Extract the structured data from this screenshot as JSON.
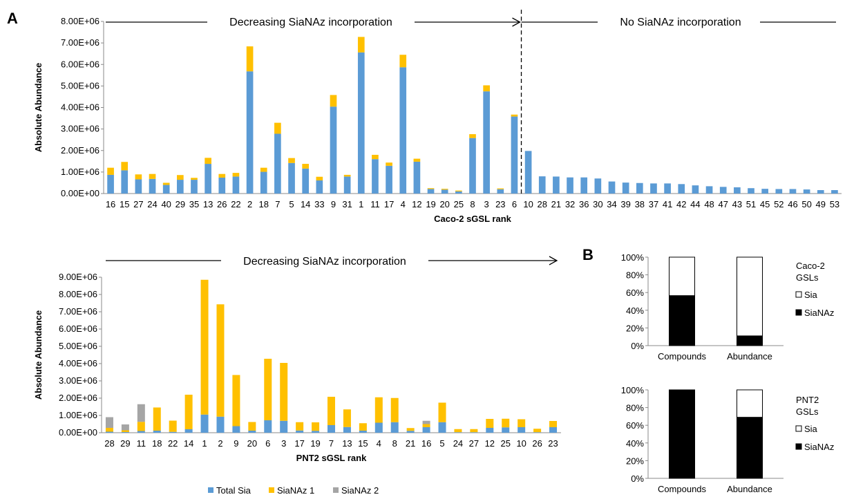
{
  "panel_labels": {
    "a": "A",
    "b": "B"
  },
  "colors": {
    "total_sia": "#5b9bd5",
    "sianaz1": "#ffc000",
    "sianaz2": "#a5a5a5",
    "sia_box": "#ffffff",
    "sianaz_box": "#000000"
  },
  "chart_data": [
    {
      "id": "caco2",
      "type": "bar",
      "stacked": true,
      "xlabel": "Caco-2 sGSL rank",
      "ylabel": "Absolute Abundance",
      "ylim": [
        0,
        8000000
      ],
      "yticks": [
        "0.00E+00",
        "1.00E+06",
        "2.00E+06",
        "3.00E+06",
        "4.00E+06",
        "5.00E+06",
        "6.00E+06",
        "7.00E+06",
        "8.00E+06"
      ],
      "categories": [
        "16",
        "15",
        "27",
        "24",
        "40",
        "29",
        "35",
        "13",
        "26",
        "22",
        "2",
        "18",
        "7",
        "5",
        "14",
        "33",
        "9",
        "31",
        "1",
        "11",
        "17",
        "4",
        "12",
        "19",
        "20",
        "25",
        "8",
        "3",
        "23",
        "6",
        "10",
        "28",
        "21",
        "32",
        "36",
        "30",
        "34",
        "39",
        "38",
        "37",
        "41",
        "42",
        "44",
        "48",
        "47",
        "43",
        "51",
        "45",
        "52",
        "46",
        "50",
        "49",
        "53"
      ],
      "series": [
        {
          "key": "total_sia",
          "values": [
            870000,
            1080000,
            660000,
            680000,
            400000,
            640000,
            640000,
            1380000,
            740000,
            790000,
            5680000,
            1010000,
            2780000,
            1420000,
            1160000,
            610000,
            4040000,
            790000,
            6560000,
            1600000,
            1290000,
            5870000,
            1480000,
            210000,
            180000,
            100000,
            2580000,
            4750000,
            200000,
            3580000,
            1980000,
            800000,
            790000,
            750000,
            750000,
            700000,
            560000,
            510000,
            490000,
            470000,
            470000,
            440000,
            380000,
            340000,
            310000,
            290000,
            250000,
            220000,
            210000,
            210000,
            190000,
            160000,
            160000
          ]
        },
        {
          "key": "sianaz1",
          "values": [
            330000,
            390000,
            230000,
            230000,
            100000,
            220000,
            90000,
            280000,
            170000,
            170000,
            1160000,
            190000,
            510000,
            230000,
            220000,
            170000,
            540000,
            80000,
            720000,
            200000,
            150000,
            580000,
            140000,
            40000,
            40000,
            40000,
            180000,
            280000,
            40000,
            90000,
            0,
            0,
            0,
            0,
            0,
            0,
            0,
            0,
            0,
            0,
            0,
            0,
            0,
            0,
            0,
            0,
            0,
            0,
            0,
            0,
            0,
            0,
            0
          ]
        }
      ],
      "annotations": {
        "decreasing": "Decreasing SiaNAz incorporation",
        "none": "No SiaNAz incorporation"
      }
    },
    {
      "id": "pnt2",
      "type": "bar",
      "stacked": true,
      "xlabel": "PNT2 sGSL rank",
      "ylabel": "Absolute Abundance",
      "ylim": [
        0,
        9000000
      ],
      "yticks": [
        "0.00E+00",
        "1.00E+06",
        "2.00E+06",
        "3.00E+06",
        "4.00E+06",
        "5.00E+06",
        "6.00E+06",
        "7.00E+06",
        "8.00E+06",
        "9.00E+06"
      ],
      "categories": [
        "28",
        "29",
        "11",
        "18",
        "22",
        "14",
        "1",
        "2",
        "9",
        "20",
        "6",
        "3",
        "17",
        "19",
        "7",
        "13",
        "15",
        "4",
        "8",
        "21",
        "16",
        "5",
        "24",
        "27",
        "12",
        "25",
        "10",
        "26",
        "23"
      ],
      "series": [
        {
          "key": "total_sia",
          "name": "Total Sia",
          "values": [
            60000,
            40000,
            100000,
            120000,
            50000,
            200000,
            1050000,
            930000,
            380000,
            120000,
            720000,
            690000,
            130000,
            110000,
            440000,
            330000,
            120000,
            580000,
            610000,
            110000,
            320000,
            610000,
            30000,
            30000,
            280000,
            310000,
            320000,
            30000,
            320000
          ]
        },
        {
          "key": "sianaz1",
          "name": "SiaNAz 1",
          "values": [
            220000,
            100000,
            530000,
            1340000,
            650000,
            2000000,
            7800000,
            6500000,
            2960000,
            500000,
            3560000,
            3350000,
            480000,
            490000,
            1640000,
            1020000,
            430000,
            1470000,
            1400000,
            160000,
            180000,
            1130000,
            180000,
            180000,
            520000,
            500000,
            460000,
            200000,
            360000
          ]
        },
        {
          "key": "sianaz2",
          "name": "SiaNAz 2",
          "values": [
            620000,
            340000,
            1020000,
            0,
            0,
            0,
            0,
            0,
            0,
            0,
            0,
            0,
            0,
            0,
            0,
            0,
            0,
            0,
            0,
            0,
            190000,
            0,
            0,
            0,
            0,
            0,
            0,
            0,
            0
          ]
        }
      ],
      "annotations": {
        "decreasing": "Decreasing SiaNAz incorporation"
      }
    },
    {
      "id": "caco2-gsls",
      "type": "bar",
      "stacked": true,
      "categories": [
        "Compounds",
        "Abundance"
      ],
      "ylim": [
        0,
        100
      ],
      "yticks": [
        "0%",
        "20%",
        "40%",
        "60%",
        "80%",
        "100%"
      ],
      "series": [
        {
          "key": "sianaz",
          "name": "SiaNAz",
          "values": [
            56.5,
            11
          ]
        },
        {
          "key": "sia",
          "name": "Sia",
          "values": [
            43.5,
            89
          ]
        }
      ],
      "legend_title": "Caco-2\nGSLs"
    },
    {
      "id": "pnt2-gsls",
      "type": "bar",
      "stacked": true,
      "categories": [
        "Compounds",
        "Abundance"
      ],
      "ylim": [
        0,
        100
      ],
      "yticks": [
        "0%",
        "20%",
        "40%",
        "60%",
        "80%",
        "100%"
      ],
      "series": [
        {
          "key": "sianaz",
          "name": "SiaNAz",
          "values": [
            100,
            69
          ]
        },
        {
          "key": "sia",
          "name": "Sia",
          "values": [
            0,
            31
          ]
        }
      ],
      "legend_title": "PNT2\nGSLs"
    }
  ]
}
